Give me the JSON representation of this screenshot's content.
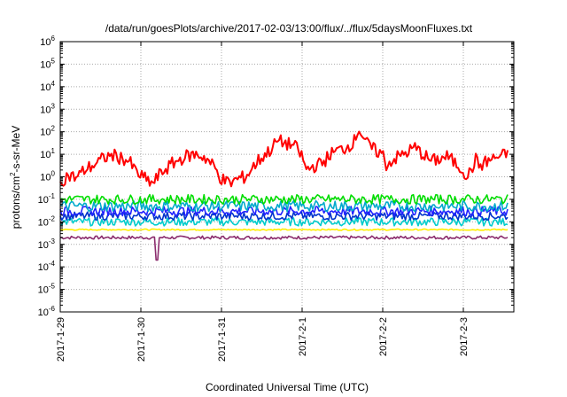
{
  "chart_data": {
    "type": "line",
    "title": "/data/run/goesPlots/archive/2017-02-03/13:00/flux/../flux/5daysMoonFluxes.txt",
    "xlabel": "Coordinated Universal Time (UTC)",
    "ylabel_parts": [
      "protons/cm",
      "2",
      "-s-sr-MeV"
    ],
    "y_scale": "log",
    "ylim_exponents": [
      -6,
      6
    ],
    "y_tick_labels": [
      {
        "base": "10",
        "exp": "6"
      },
      {
        "base": "10",
        "exp": "5"
      },
      {
        "base": "10",
        "exp": "4"
      },
      {
        "base": "10",
        "exp": "3"
      },
      {
        "base": "10",
        "exp": "2"
      },
      {
        "base": "10",
        "exp": "1"
      },
      {
        "base": "10",
        "exp": "0"
      },
      {
        "base": "10",
        "exp": "-1"
      },
      {
        "base": "10",
        "exp": "-2"
      },
      {
        "base": "10",
        "exp": "-3"
      },
      {
        "base": "10",
        "exp": "-4"
      },
      {
        "base": "10",
        "exp": "-5"
      },
      {
        "base": "10",
        "exp": "-6"
      }
    ],
    "x_tick_labels": [
      "2017-1-29",
      "2017-1-30",
      "2017-1-31",
      "2017-2-1",
      "2017-2-2",
      "2017-2-3"
    ],
    "xlim_days": [
      0,
      5.55
    ],
    "grid": true,
    "series": [
      {
        "color": "#ff0000",
        "points": [
          [
            0,
            0.6
          ],
          [
            0.1,
            1.2
          ],
          [
            0.2,
            0.9
          ],
          [
            0.3,
            2
          ],
          [
            0.45,
            4
          ],
          [
            0.55,
            7
          ],
          [
            0.65,
            9
          ],
          [
            0.75,
            7
          ],
          [
            0.85,
            5
          ],
          [
            0.95,
            1.5
          ],
          [
            1.05,
            0.8
          ],
          [
            1.15,
            0.5
          ],
          [
            1.25,
            1.5
          ],
          [
            1.4,
            4
          ],
          [
            1.55,
            8
          ],
          [
            1.7,
            10
          ],
          [
            1.8,
            7
          ],
          [
            1.9,
            3
          ],
          [
            2.0,
            0.8
          ],
          [
            2.1,
            0.5
          ],
          [
            2.2,
            0.8
          ],
          [
            2.3,
            1
          ],
          [
            2.45,
            5
          ],
          [
            2.6,
            15
          ],
          [
            2.7,
            40
          ],
          [
            2.8,
            30
          ],
          [
            2.9,
            25
          ],
          [
            3.0,
            8
          ],
          [
            3.05,
            2
          ],
          [
            3.15,
            3
          ],
          [
            3.25,
            4
          ],
          [
            3.35,
            10
          ],
          [
            3.45,
            15
          ],
          [
            3.55,
            20
          ],
          [
            3.65,
            40
          ],
          [
            3.7,
            150
          ],
          [
            3.8,
            30
          ],
          [
            3.9,
            15
          ],
          [
            4.0,
            10
          ],
          [
            4.05,
            3
          ],
          [
            4.1,
            5
          ],
          [
            4.2,
            8
          ],
          [
            4.3,
            12
          ],
          [
            4.4,
            20
          ],
          [
            4.5,
            10
          ],
          [
            4.6,
            5
          ],
          [
            4.7,
            6
          ],
          [
            4.8,
            8
          ],
          [
            4.9,
            4
          ],
          [
            5.0,
            2
          ],
          [
            5.05,
            1
          ],
          [
            5.1,
            2
          ],
          [
            5.15,
            6
          ],
          [
            5.2,
            3
          ],
          [
            5.3,
            5
          ],
          [
            5.4,
            7
          ],
          [
            5.5,
            9
          ],
          [
            5.55,
            10
          ]
        ],
        "noise": 0.5
      },
      {
        "color": "#00dd00",
        "level": 0.1,
        "noise": 0.35
      },
      {
        "color": "#00aacc",
        "level": 0.05,
        "noise": 0.4
      },
      {
        "color": "#2222ff",
        "level": 0.03,
        "noise": 0.35
      },
      {
        "color": "#0033cc",
        "level": 0.018,
        "noise": 0.3
      },
      {
        "color": "#00cccc",
        "level": 0.01,
        "noise": 0.3
      },
      {
        "color": "#ffee00",
        "level": 0.0045,
        "noise": 0.05
      },
      {
        "color": "#8b2c6d",
        "level": 0.002,
        "noise": 0.12,
        "dip_day": 1.2,
        "dip_value": 0.0002
      }
    ]
  }
}
